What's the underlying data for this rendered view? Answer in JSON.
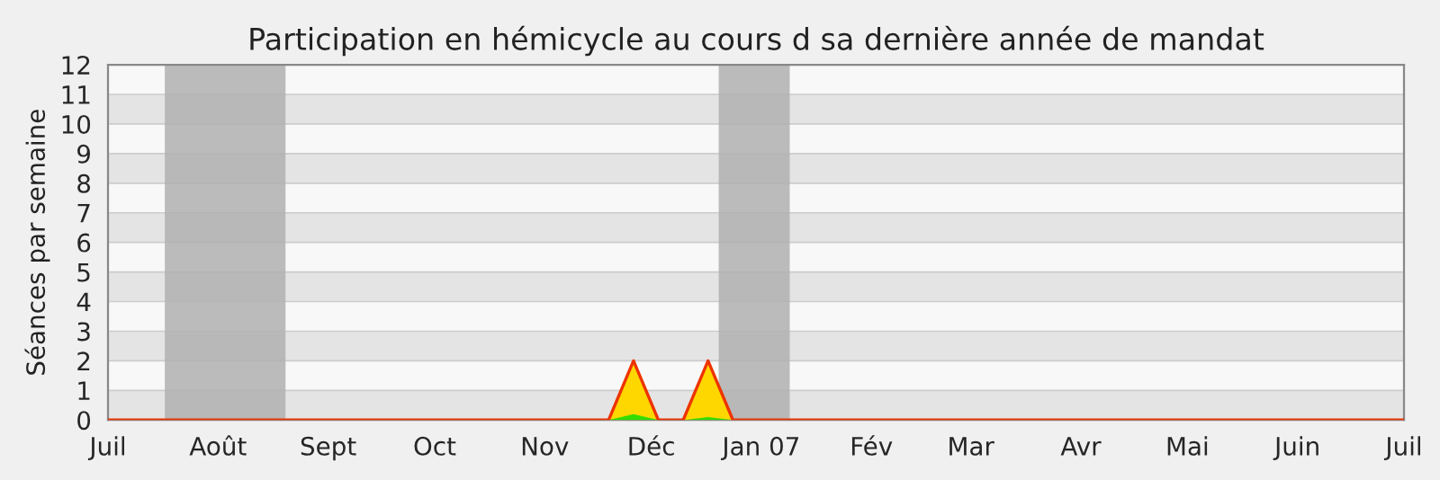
{
  "chart_data": {
    "type": "area",
    "title": "Participation en hémicycle au cours d sa dernière année de mandat",
    "ylabel": "Séances par semaine",
    "x": [
      "2006-07-01",
      "2006-11-19",
      "2006-11-26",
      "2006-12-03",
      "2006-12-10",
      "2006-12-17",
      "2006-12-24",
      "2007-07-01"
    ],
    "series": [
      {
        "color": "#ffd700",
        "values": [
          0,
          0,
          2,
          0,
          0,
          2,
          0,
          0
        ]
      },
      {
        "color": "#33dd00",
        "values": [
          0,
          0,
          0.2,
          0,
          0,
          0.1,
          0,
          0
        ]
      }
    ],
    "xlim": [
      "2006-07-01",
      "2007-07-01"
    ],
    "xticks": [
      {
        "value": "2006-07-01",
        "label": "Juil"
      },
      {
        "value": "2006-08-01",
        "label": "Août"
      },
      {
        "value": "2006-09-01",
        "label": "Sept"
      },
      {
        "value": "2006-10-01",
        "label": "Oct"
      },
      {
        "value": "2006-11-01",
        "label": "Nov"
      },
      {
        "value": "2006-12-01",
        "label": "Déc"
      },
      {
        "value": "2007-01-01",
        "label": "Jan 07"
      },
      {
        "value": "2007-02-01",
        "label": "Fév"
      },
      {
        "value": "2007-03-01",
        "label": "Mar"
      },
      {
        "value": "2007-04-01",
        "label": "Avr"
      },
      {
        "value": "2007-05-01",
        "label": "Mai"
      },
      {
        "value": "2007-06-01",
        "label": "Juin"
      },
      {
        "value": "2007-07-01",
        "label": "Juil"
      }
    ],
    "ylim": [
      0,
      12
    ],
    "yticks": [
      0,
      1,
      2,
      3,
      4,
      5,
      6,
      7,
      8,
      9,
      10,
      11,
      12
    ],
    "bands": [
      {
        "axis": "x",
        "from": "2006-07-17",
        "to": "2006-08-20",
        "color": "#b0b0b0"
      },
      {
        "axis": "x",
        "from": "2006-12-20",
        "to": "2007-01-09",
        "color": "#b0b0b0"
      }
    ],
    "grid": "y",
    "legend": false
  }
}
